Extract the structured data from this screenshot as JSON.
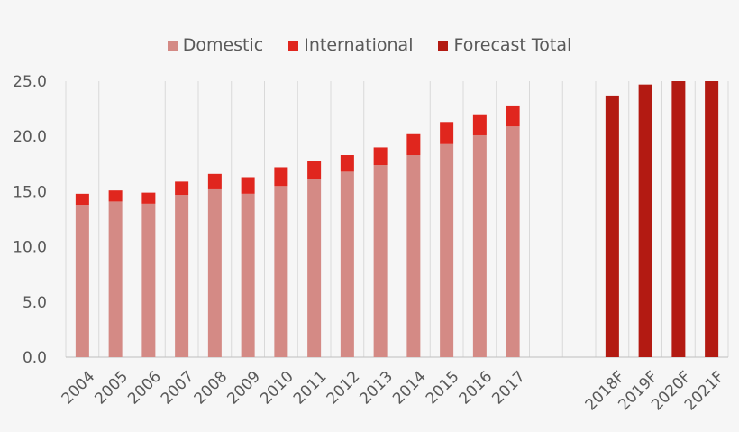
{
  "chart_data": {
    "type": "bar",
    "title": "",
    "xlabel": "",
    "ylabel": "",
    "ylim": [
      0,
      25
    ],
    "y_ticks": [
      "0.0",
      "5.0",
      "10.0",
      "15.0",
      "20.0",
      "25.0"
    ],
    "categories": [
      "2004",
      "2005",
      "2006",
      "2007",
      "2008",
      "2009",
      "2010",
      "2011",
      "2012",
      "2013",
      "2014",
      "2015",
      "2016",
      "2017",
      "",
      "",
      "2018F",
      "2019F",
      "2020F",
      "2021F"
    ],
    "series": [
      {
        "name": "Domestic",
        "color": "#d48a85",
        "values": [
          13.8,
          14.1,
          13.9,
          14.7,
          15.2,
          14.8,
          15.5,
          16.1,
          16.8,
          17.4,
          18.3,
          19.3,
          20.1,
          20.9,
          null,
          null,
          null,
          null,
          null,
          null
        ]
      },
      {
        "name": "International",
        "color": "#e0261e",
        "values": [
          1.0,
          1.0,
          1.0,
          1.2,
          1.4,
          1.5,
          1.7,
          1.7,
          1.5,
          1.6,
          1.9,
          2.0,
          1.9,
          1.9,
          null,
          null,
          null,
          null,
          null,
          null
        ]
      },
      {
        "name": "Forecast Total",
        "color": "#b31a12",
        "values": [
          null,
          null,
          null,
          null,
          null,
          null,
          null,
          null,
          null,
          null,
          null,
          null,
          null,
          null,
          null,
          null,
          23.7,
          24.7,
          25.0,
          25.0
        ]
      }
    ],
    "stacked": true,
    "grid": "vertical category separators",
    "legend_position": "top"
  }
}
